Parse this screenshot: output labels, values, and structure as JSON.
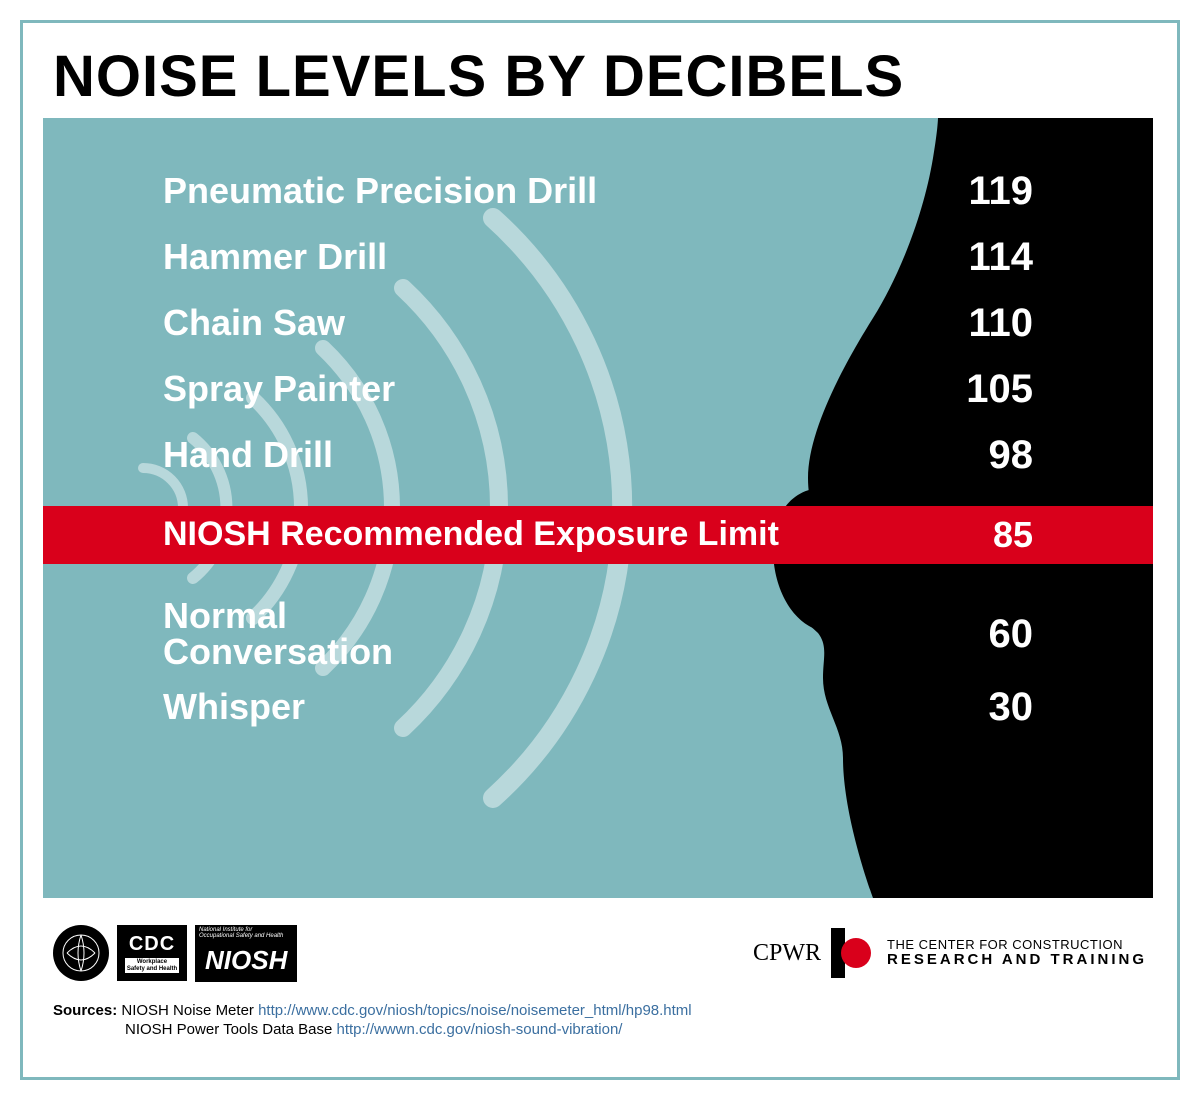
{
  "title": "NOISE LEVELS BY DECIBELS",
  "chart": {
    "type": "infographic-list",
    "background_color": "#7fb8bd",
    "text_color": "#ffffff",
    "label_fontsize": 36,
    "value_fontsize": 40,
    "value_font_weight": 900,
    "silhouette_color": "#000000",
    "wave_color": "rgba(255,255,255,0.45)",
    "limit_row": {
      "label": "NIOSH Recommended Exposure Limit",
      "value": "85",
      "bg_color": "#d9001b",
      "text_color": "#ffffff",
      "fontsize": 34
    },
    "rows_above": [
      {
        "label": "Pneumatic Precision Drill",
        "value": "119"
      },
      {
        "label": "Hammer Drill",
        "value": "114"
      },
      {
        "label": "Chain Saw",
        "value": "110"
      },
      {
        "label": "Spray Painter",
        "value": "105"
      },
      {
        "label": "Hand Drill",
        "value": "98"
      }
    ],
    "rows_below": [
      {
        "label": "Normal\nConversation",
        "value": "60",
        "multiline": true
      },
      {
        "label": "Whisper",
        "value": "30"
      }
    ]
  },
  "footer": {
    "left_logos": {
      "hhs": "HHS",
      "cdc_big": "CDC",
      "cdc_small": "Workplace\nSafety and Health",
      "niosh_top": "National Institute for\nOccupational Safety and Health",
      "niosh_main": "NIOSH"
    },
    "right": {
      "cpwr": "CPWR",
      "center_line1": "THE CENTER FOR CONSTRUCTION",
      "center_line2": "RESEARCH AND TRAINING",
      "accent_color": "#d9001b"
    }
  },
  "sources": {
    "label": "Sources:",
    "items": [
      {
        "text": "NIOSH Noise Meter ",
        "url": "http://www.cdc.gov/niosh/topics/noise/noisemeter_html/hp98.html"
      },
      {
        "text": "NIOSH Power Tools Data Base ",
        "url": "http://wwwn.cdc.gov/niosh-sound-vibration/"
      }
    ]
  },
  "frame_border_color": "#7fb8bd",
  "page_background": "#ffffff"
}
